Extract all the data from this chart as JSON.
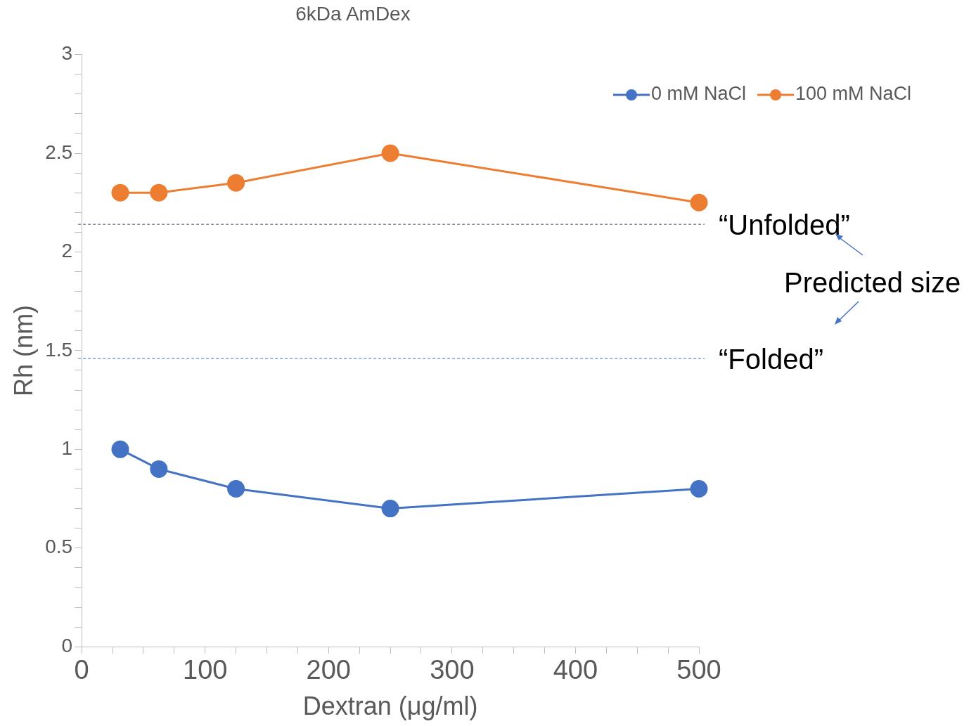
{
  "chart_data": {
    "type": "line",
    "title": "6kDa AmDex",
    "xlabel": "Dextran (μg/ml)",
    "ylabel": "Rh (nm)",
    "x": [
      31.25,
      62.5,
      125,
      250,
      500
    ],
    "series": [
      {
        "name": "0 mM NaCl",
        "color": "#4472c4",
        "values": [
          1.0,
          0.9,
          0.8,
          0.7,
          0.8
        ]
      },
      {
        "name": "100 mM NaCl",
        "color": "#ed7d31",
        "values": [
          2.3,
          2.3,
          2.35,
          2.5,
          2.25
        ]
      }
    ],
    "xlim": [
      0,
      500
    ],
    "xticks": [
      0,
      {
        "value": 25,
        "label": null
      },
      {
        "value": 50,
        "label": null
      },
      {
        "value": 75,
        "label": null
      },
      100,
      {
        "value": 125,
        "label": null
      },
      {
        "value": 150,
        "label": null
      },
      {
        "value": 175,
        "label": null
      },
      200,
      {
        "value": 225,
        "label": null
      },
      {
        "value": 250,
        "label": null
      },
      {
        "value": 275,
        "label": null
      },
      300,
      {
        "value": 325,
        "label": null
      },
      {
        "value": 350,
        "label": null
      },
      {
        "value": 375,
        "label": null
      },
      400,
      {
        "value": 425,
        "label": null
      },
      {
        "value": 450,
        "label": null
      },
      {
        "value": 475,
        "label": null
      },
      500
    ],
    "ylim": [
      0,
      3
    ],
    "yticks": [
      0,
      {
        "value": 0.1,
        "label": null
      },
      {
        "value": 0.2,
        "label": null
      },
      {
        "value": 0.3,
        "label": null
      },
      {
        "value": 0.4,
        "label": null
      },
      0.5,
      {
        "value": 0.6,
        "label": null
      },
      {
        "value": 0.7,
        "label": null
      },
      {
        "value": 0.8,
        "label": null
      },
      {
        "value": 0.9,
        "label": null
      },
      1,
      {
        "value": 1.1,
        "label": null
      },
      {
        "value": 1.2,
        "label": null
      },
      {
        "value": 1.3,
        "label": null
      },
      {
        "value": 1.4,
        "label": null
      },
      1.5,
      {
        "value": 1.6,
        "label": null
      },
      {
        "value": 1.7,
        "label": null
      },
      {
        "value": 1.8,
        "label": null
      },
      {
        "value": 1.9,
        "label": null
      },
      2,
      {
        "value": 2.1,
        "label": null
      },
      {
        "value": 2.2,
        "label": null
      },
      {
        "value": 2.3,
        "label": null
      },
      {
        "value": 2.4,
        "label": null
      },
      2.5,
      {
        "value": 2.6,
        "label": null
      },
      {
        "value": 2.7,
        "label": null
      },
      {
        "value": 2.8,
        "label": null
      },
      {
        "value": 2.9,
        "label": null
      },
      3
    ],
    "ref_lines": [
      {
        "axis": "y",
        "value": 2.14,
        "label": "“Unfolded”",
        "color": "#44546a",
        "line_style": "dashed"
      },
      {
        "axis": "y",
        "value": 1.46,
        "label": "“Folded”",
        "color": "#4472c4",
        "line_style": "dashed"
      }
    ],
    "annotations": [
      "Predicted size"
    ],
    "grid": false,
    "legend": "top right",
    "marker": "circle",
    "line_style": "solid"
  }
}
